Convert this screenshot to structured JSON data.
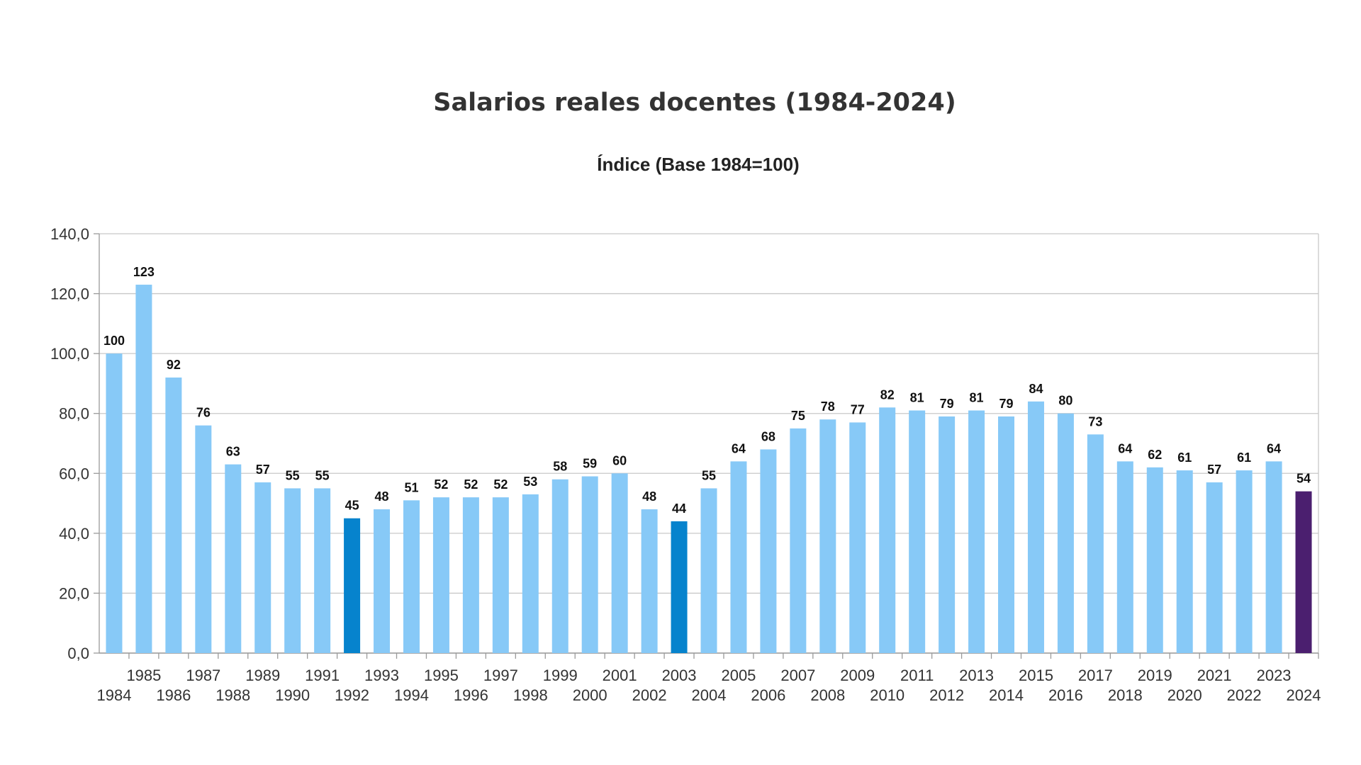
{
  "chart_data": {
    "type": "bar",
    "title": "Salarios reales docentes (1984-2024)",
    "subtitle": "Índice (Base 1984=100)",
    "xlabel": "",
    "ylabel": "",
    "ylim": [
      0,
      140
    ],
    "yticks": [
      "0,0",
      "20,0",
      "40,0",
      "60,0",
      "80,0",
      "100,0",
      "120,0",
      "140,0"
    ],
    "grid": true,
    "categories": [
      "1984",
      "1985",
      "1986",
      "1987",
      "1988",
      "1989",
      "1990",
      "1991",
      "1992",
      "1993",
      "1994",
      "1995",
      "1996",
      "1997",
      "1998",
      "1999",
      "2000",
      "2001",
      "2002",
      "2003",
      "2004",
      "2005",
      "2006",
      "2007",
      "2008",
      "2009",
      "2010",
      "2011",
      "2012",
      "2013",
      "2014",
      "2015",
      "2016",
      "2017",
      "2018",
      "2019",
      "2020",
      "2021",
      "2022",
      "2023",
      "2024"
    ],
    "values": [
      100,
      123,
      92,
      76,
      63,
      57,
      55,
      55,
      45,
      48,
      51,
      52,
      52,
      52,
      53,
      58,
      59,
      60,
      48,
      44,
      55,
      64,
      68,
      75,
      78,
      77,
      82,
      81,
      79,
      81,
      79,
      84,
      80,
      73,
      64,
      62,
      61,
      57,
      61,
      64,
      54
    ],
    "data_labels": [
      "100",
      "123",
      "92",
      "76",
      "63",
      "57",
      "55",
      "55",
      "45",
      "48",
      "51",
      "52",
      "52",
      "52",
      "53",
      "58",
      "59",
      "60",
      "48",
      "44",
      "55",
      "64",
      "68",
      "75",
      "78",
      "77",
      "82",
      "81",
      "79",
      "81",
      "79",
      "84",
      "80",
      "73",
      "64",
      "62",
      "61",
      "57",
      "61",
      "64",
      "54"
    ],
    "bar_colors": [
      "#87C9F7",
      "#87C9F7",
      "#87C9F7",
      "#87C9F7",
      "#87C9F7",
      "#87C9F7",
      "#87C9F7",
      "#87C9F7",
      "#0683CD",
      "#87C9F7",
      "#87C9F7",
      "#87C9F7",
      "#87C9F7",
      "#87C9F7",
      "#87C9F7",
      "#87C9F7",
      "#87C9F7",
      "#87C9F7",
      "#87C9F7",
      "#0683CD",
      "#87C9F7",
      "#87C9F7",
      "#87C9F7",
      "#87C9F7",
      "#87C9F7",
      "#87C9F7",
      "#87C9F7",
      "#87C9F7",
      "#87C9F7",
      "#87C9F7",
      "#87C9F7",
      "#87C9F7",
      "#87C9F7",
      "#87C9F7",
      "#87C9F7",
      "#87C9F7",
      "#87C9F7",
      "#87C9F7",
      "#87C9F7",
      "#87C9F7",
      "#4B1F6F"
    ],
    "colors": {
      "default_bar": "#87C9F7",
      "highlight_bar": "#0683CD",
      "latest_bar": "#4B1F6F",
      "grid": "#C8C8C8",
      "axis": "#9A9A9A"
    }
  }
}
